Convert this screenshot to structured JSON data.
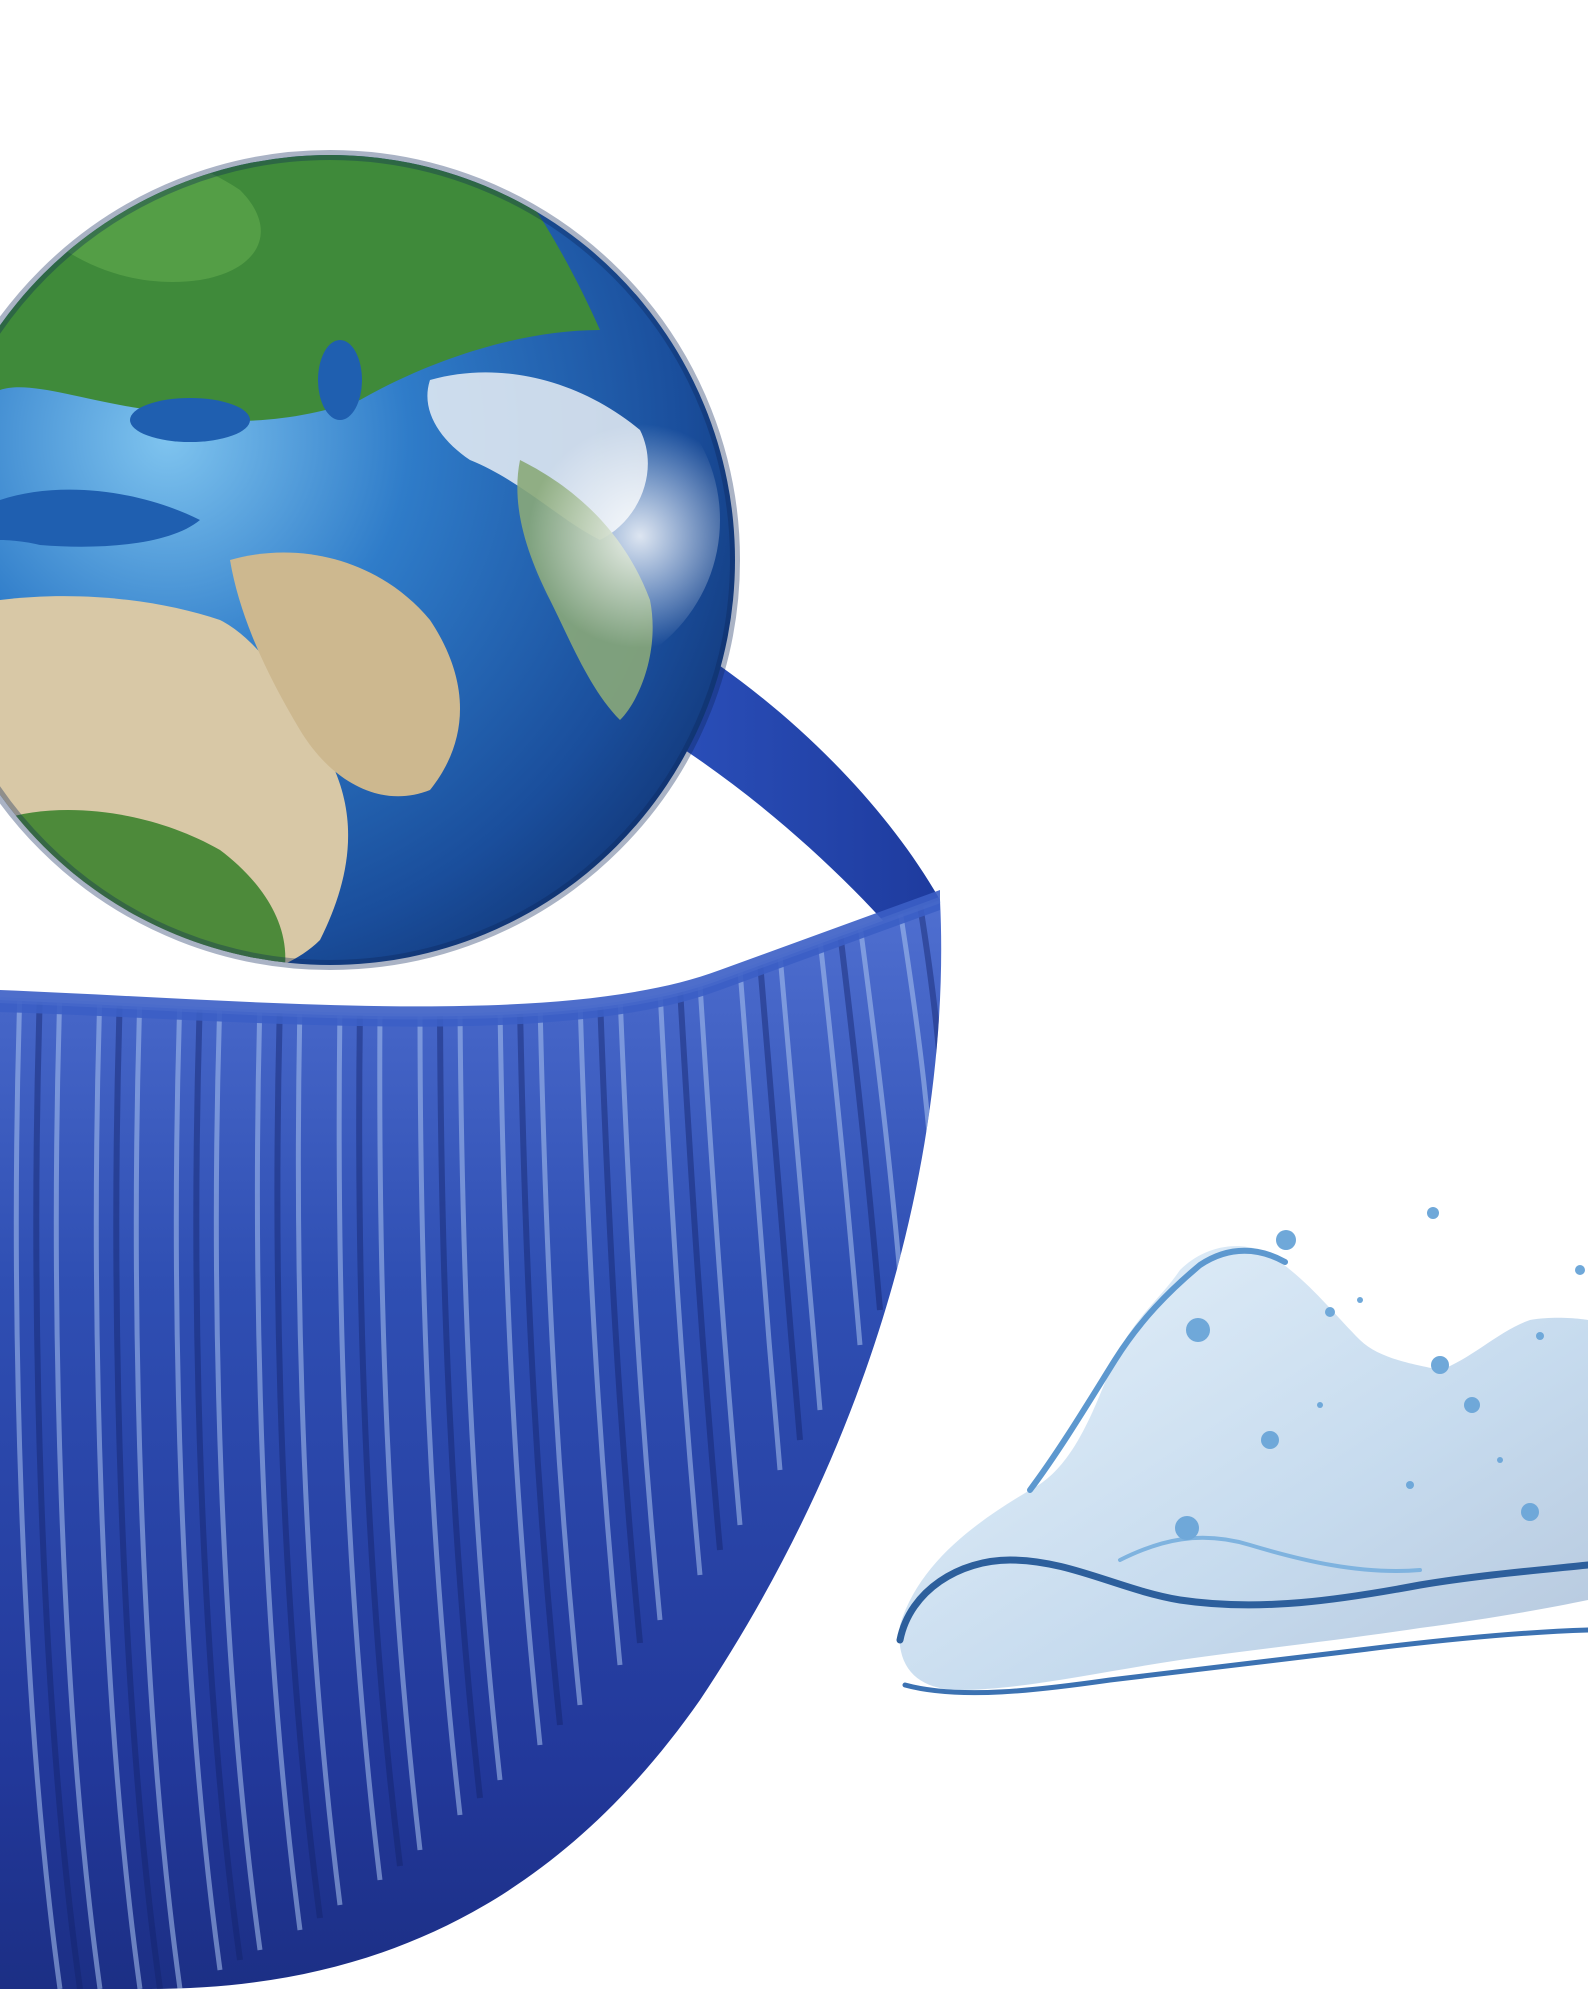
{
  "image": {
    "subject_parts": [
      "earth-globe",
      "corrugated-pipe-ring",
      "water-splash"
    ],
    "colors": {
      "background": "#ffffff",
      "pipe_blue": "#2f4fb3",
      "pipe_dark": "#1c2f85",
      "pipe_highlight": "#a9c3ee",
      "ocean": "#1f5fb0",
      "land_green": "#3f8a3a",
      "land_desert": "#d8c8a6",
      "water_splash": "#6fa8d9"
    }
  }
}
